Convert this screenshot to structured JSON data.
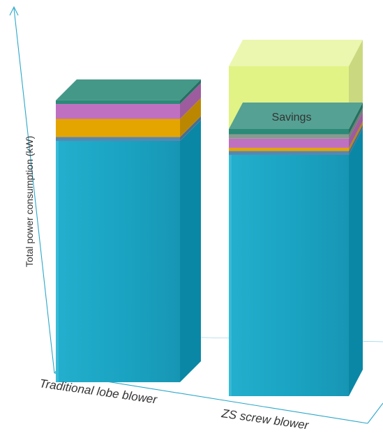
{
  "chart_data": {
    "type": "bar",
    "variant": "3d-stacked",
    "ylabel": "Total power consumption (kW)",
    "categories": [
      "Traditional lobe blower",
      "ZS screw blower"
    ],
    "annotation": "Savings",
    "axes": {
      "y_ticks": "none",
      "grid": false
    },
    "colors": {
      "base": "#1aa3c2",
      "base_light": "#5fd0e8",
      "base_dark": "#0b87a6",
      "blue_stripe": "#5a86ad",
      "orange": "#e5a500",
      "pink": "#c070c0",
      "teal_top": "#2b8a78",
      "grey_stripe": "#8a9a90",
      "savings": "#cfeb3a",
      "axis": "#2aa7c9"
    },
    "series": [
      {
        "color": "base",
        "values": [
          100,
          100
        ]
      },
      {
        "color": "blue_stripe",
        "values": [
          1.6,
          1.6
        ]
      },
      {
        "color": "orange",
        "values": [
          7.5,
          1.3
        ]
      },
      {
        "color": "pink",
        "values": [
          6.2,
          3.8
        ]
      },
      {
        "color": "grey_stripe",
        "values": [
          0,
          1.8
        ]
      },
      {
        "color": "teal_top",
        "values": [
          1.5,
          2.2
        ]
      },
      {
        "color": "savings",
        "values": [
          0,
          26
        ]
      }
    ]
  }
}
